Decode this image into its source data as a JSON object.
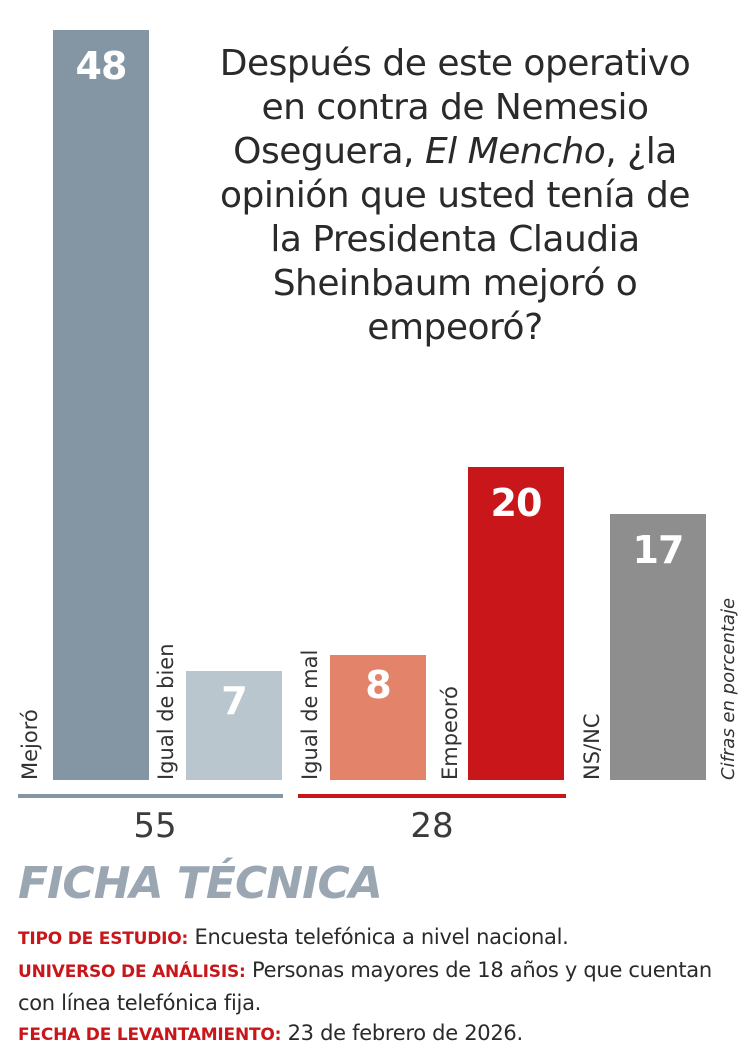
{
  "chart_data": {
    "type": "bar",
    "title_parts": {
      "before": "Después de este operativo en contra de Nemesio Oseguera, ",
      "italic": "El Mencho",
      "after": ", ¿la opinión que usted tenía de la Presidenta Claudia Sheinbaum mejoró o empeoró?"
    },
    "categories": [
      "Mejoró",
      "Igual de bien",
      "Igual de mal",
      "Empeoró",
      "NS/NC"
    ],
    "values": [
      48,
      7,
      8,
      20,
      17
    ],
    "value_labels": [
      "48",
      "7",
      "8",
      "20",
      "17"
    ],
    "colors": [
      "#8496a3",
      "#b9c6ce",
      "#e2836a",
      "#c8161b",
      "#8e8e8e"
    ],
    "groups": [
      {
        "total": "55",
        "color": "#8496a3"
      },
      {
        "total": "28",
        "color": "#c8161b"
      }
    ],
    "note": "Cifras en porcentaje",
    "ylim": [
      0,
      48
    ]
  },
  "ficha": {
    "title": "FICHA TÉCNICA",
    "tipo_key": "TIPO DE ESTUDIO:",
    "tipo_val": " Encuesta telefónica a nivel nacional.",
    "universo_key": "UNIVERSO DE ANÁLISIS:",
    "universo_val": " Personas mayores de 18 años y que cuentan con línea telefónica fija.",
    "fecha_key": "FECHA DE LEVANTAMIENTO:",
    "fecha_val": " 23 de febrero de 2026."
  }
}
